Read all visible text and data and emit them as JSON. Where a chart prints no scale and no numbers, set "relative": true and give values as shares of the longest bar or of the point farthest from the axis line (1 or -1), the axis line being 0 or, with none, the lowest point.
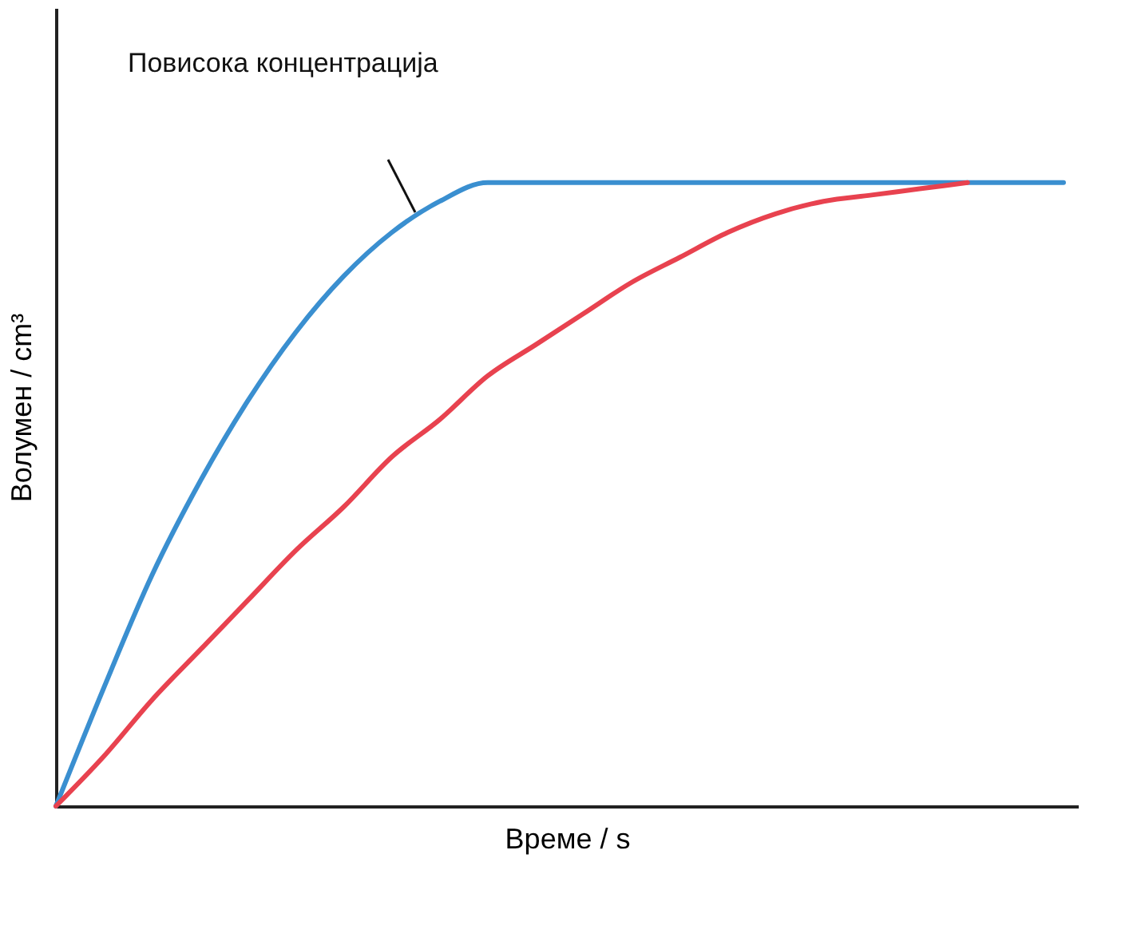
{
  "chart_data": {
    "type": "line",
    "relative": true,
    "xlabel": "Време / s",
    "ylabel": "Волумен / cm³",
    "marker": "none",
    "line_style": "solid",
    "annotations": [
      "Повисока концентрација"
    ],
    "categories": [
      null,
      null,
      null,
      null,
      null,
      null,
      null,
      null,
      null,
      null,
      null,
      null,
      null,
      null,
      null,
      null,
      null,
      null,
      null,
      null,
      null,
      null
    ],
    "series": [
      {
        "color": "#3a8fd0",
        "values": [
          0,
          0.19,
          0.37,
          0.52,
          0.65,
          0.76,
          0.85,
          0.92,
          0.97,
          1.0,
          1.0,
          1.0,
          1.0,
          1.0,
          1.0,
          1.0,
          1.0,
          1.0,
          1.0,
          1.0,
          1.0,
          1.0
        ]
      },
      {
        "color": "#e8424f",
        "values": [
          0,
          0.08,
          0.17,
          0.25,
          0.33,
          0.41,
          0.48,
          0.56,
          0.62,
          0.69,
          0.74,
          0.79,
          0.84,
          0.88,
          0.92,
          0.95,
          0.97,
          0.98,
          0.99,
          1.0,
          null,
          null
        ]
      }
    ]
  }
}
